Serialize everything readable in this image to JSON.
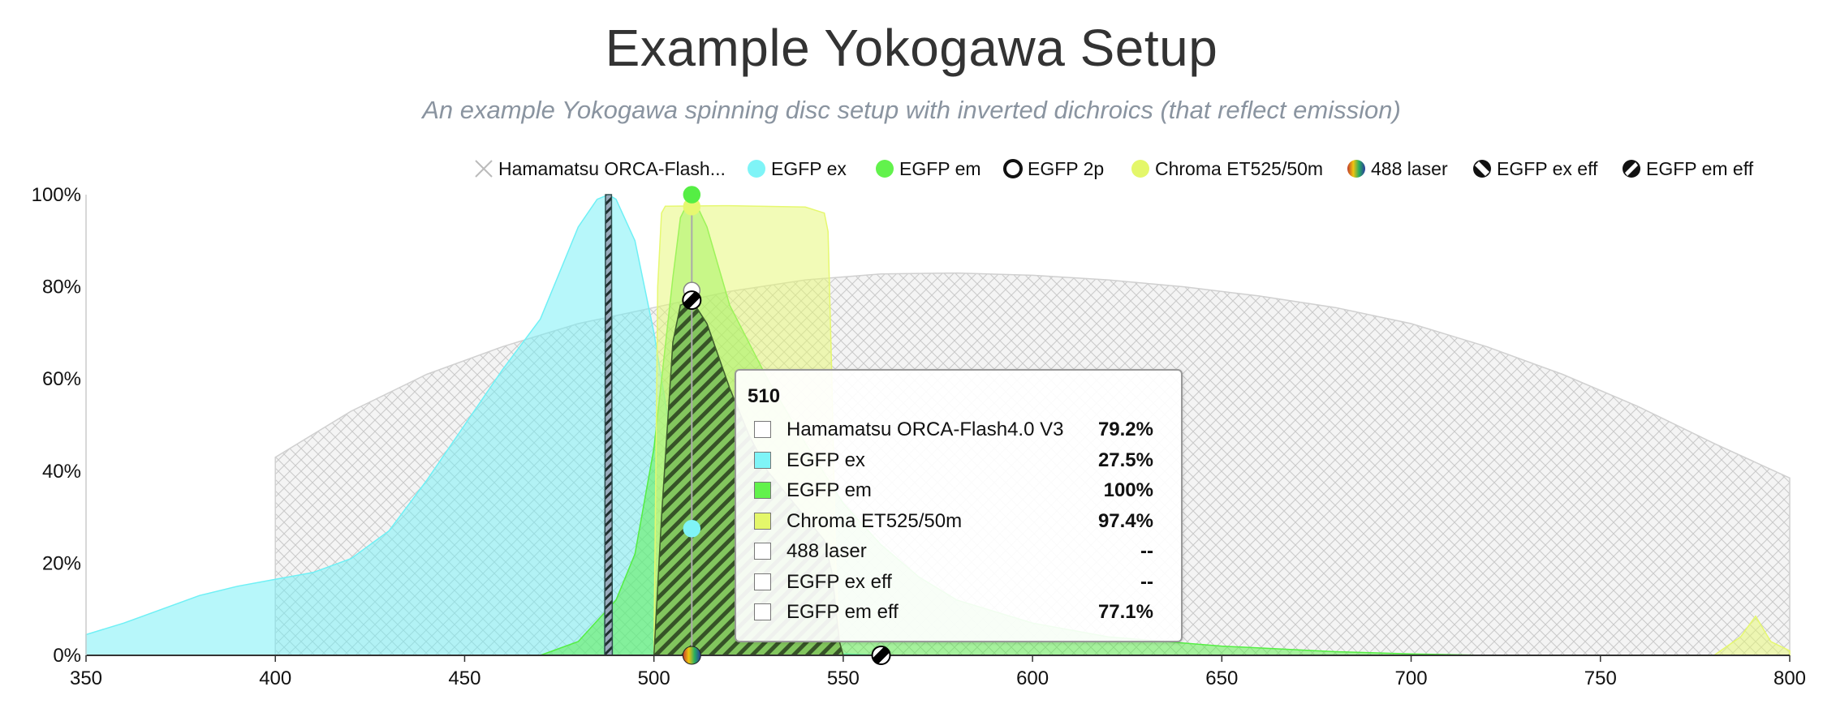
{
  "header": {
    "title": "Example Yokogawa Setup",
    "subtitle": "An example Yokogawa spinning disc setup with inverted dichroics (that reflect emission)"
  },
  "chart_data": {
    "type": "area",
    "xlim": [
      350,
      800
    ],
    "ylim": [
      0,
      100
    ],
    "x_ticks": [
      "350",
      "400",
      "450",
      "500",
      "550",
      "600",
      "650",
      "700",
      "750",
      "800"
    ],
    "y_ticks": [
      "0%",
      "20%",
      "40%",
      "60%",
      "80%",
      "100%"
    ],
    "grid": false,
    "legend_position": "top-right",
    "legend": [
      {
        "label": "Hamamatsu ORCA-Flash...",
        "icon": "crosshatch-icon",
        "color": "#cccccc"
      },
      {
        "label": "EGFP ex",
        "icon": "dot-icon",
        "color": "#7ff4f7"
      },
      {
        "label": "EGFP em",
        "icon": "dot-icon",
        "color": "#62f24c"
      },
      {
        "label": "EGFP 2p",
        "icon": "ring-icon",
        "color": "#8b0000"
      },
      {
        "label": "Chroma ET525/50m",
        "icon": "dot-icon",
        "color": "#e4f76a"
      },
      {
        "label": "488 laser",
        "icon": "rainbow-dot-icon",
        "color": "#2b3a9e"
      },
      {
        "label": "EGFP ex eff",
        "icon": "hatched-dot-icon",
        "color": "#000000"
      },
      {
        "label": "EGFP em eff",
        "icon": "hatched-dot-icon",
        "color": "#000000"
      }
    ],
    "series": [
      {
        "name": "Hamamatsu ORCA-Flash4.0 V3",
        "color": "#d6d6d6",
        "fill": "crosshatch",
        "x": [
          400,
          420,
          440,
          460,
          480,
          500,
          520,
          540,
          560,
          580,
          600,
          620,
          640,
          660,
          680,
          700,
          720,
          740,
          760,
          780,
          800
        ],
        "y": [
          43,
          53,
          61,
          67,
          72,
          75.5,
          79,
          81.5,
          82.8,
          83,
          82.5,
          81.5,
          80,
          78,
          75.5,
          72,
          67,
          61,
          54,
          46,
          38.5
        ]
      },
      {
        "name": "EGFP ex",
        "color": "#6ff0f5",
        "fill": "solid",
        "x": [
          350,
          360,
          370,
          380,
          390,
          400,
          410,
          420,
          430,
          440,
          450,
          460,
          470,
          475,
          480,
          485,
          488,
          490,
          495,
          500,
          505,
          510,
          515,
          520,
          530,
          540,
          550,
          560
        ],
        "y": [
          4.5,
          7,
          10,
          13,
          15,
          16.5,
          18,
          21,
          27,
          38,
          50,
          62,
          73,
          83,
          93,
          99,
          100,
          99,
          90,
          70,
          45,
          27.5,
          14,
          7,
          2.5,
          1,
          0.3,
          0
        ]
      },
      {
        "name": "EGFP em",
        "color": "#55ee44",
        "fill": "solid",
        "x": [
          470,
          480,
          490,
          495,
          500,
          505,
          507,
          510,
          514,
          520,
          530,
          540,
          550,
          560,
          570,
          580,
          600,
          620,
          650,
          680,
          700,
          720
        ],
        "y": [
          0,
          3,
          12,
          22,
          45,
          82,
          95,
          100,
          93,
          76,
          60,
          46,
          33,
          24,
          17,
          12,
          7,
          4,
          2,
          0.8,
          0.3,
          0
        ]
      },
      {
        "name": "Chroma ET525/50m",
        "color": "#e6f870",
        "fill": "solid",
        "x": [
          500,
          501,
          502,
          503,
          520,
          540,
          545,
          546,
          547,
          548,
          549,
          550,
          780,
          787,
          791,
          795,
          800
        ],
        "y": [
          0,
          80,
          96,
          97.5,
          97.6,
          97.3,
          96,
          92,
          60,
          20,
          3,
          0,
          0,
          4,
          8.5,
          3,
          1
        ]
      },
      {
        "name": "488 laser",
        "color": "#2f4f4f",
        "fill": "hatch",
        "x": [
          487,
          487.2,
          488.8,
          489
        ],
        "y": [
          0,
          100,
          100,
          0
        ]
      },
      {
        "name": "EGFP em eff",
        "color": "#446b33",
        "fill": "hatch",
        "x": [
          500,
          502,
          505,
          507,
          510,
          514,
          520,
          525,
          530,
          540,
          545,
          547,
          549,
          550
        ],
        "y": [
          0,
          30,
          68,
          76,
          77.1,
          72,
          58,
          48,
          40,
          30,
          25,
          18,
          3,
          0
        ]
      }
    ],
    "markers": [
      {
        "series": "Chroma ET525/50m",
        "x": 510,
        "y": 97.4,
        "color": "#e6f870"
      },
      {
        "series": "EGFP em",
        "x": 510,
        "y": 100,
        "color": "#55ee44"
      },
      {
        "series": "Hamamatsu ORCA-Flash4.0 V3",
        "x": 510,
        "y": 79.2,
        "color": "#ffffff"
      },
      {
        "series": "EGFP em eff",
        "x": 510,
        "y": 77.1,
        "color": "#000000"
      },
      {
        "series": "EGFP ex",
        "x": 510,
        "y": 27.5,
        "color": "#7ff4f7"
      },
      {
        "series": "488 laser",
        "x": 510,
        "y": 0,
        "color": "#2b3a9e"
      },
      {
        "series": "EGFP ex eff",
        "x": 560,
        "y": 0,
        "color": "#000000"
      }
    ],
    "crosshair_x": 510,
    "tooltip": {
      "header": "510",
      "rows": [
        {
          "name": "Hamamatsu ORCA-Flash4.0 V3",
          "value": "79.2%",
          "color": "#ffffff"
        },
        {
          "name": "EGFP ex",
          "value": "27.5%",
          "color": "#7ff4f7"
        },
        {
          "name": "EGFP em",
          "value": "100%",
          "color": "#62f24c"
        },
        {
          "name": "Chroma ET525/50m",
          "value": "97.4%",
          "color": "#e4f76a"
        },
        {
          "name": "488 laser",
          "value": "--",
          "color": "#ffffff"
        },
        {
          "name": "EGFP ex eff",
          "value": "--",
          "color": "#ffffff"
        },
        {
          "name": "EGFP em eff",
          "value": "77.1%",
          "color": "#ffffff"
        }
      ]
    }
  }
}
